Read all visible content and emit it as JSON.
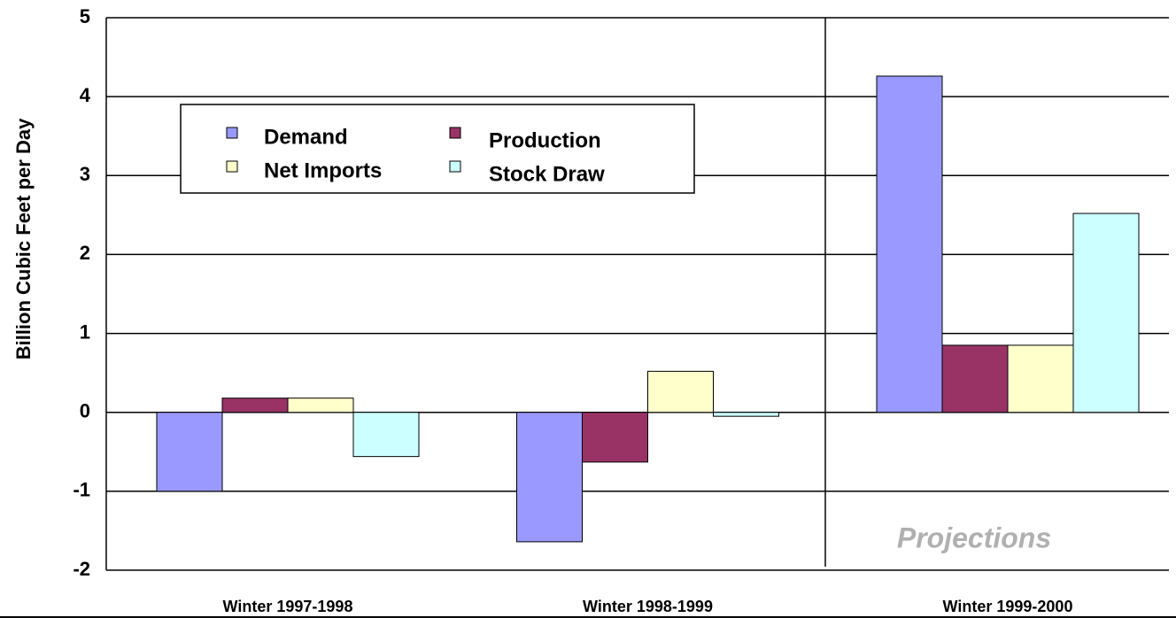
{
  "chart_data": {
    "type": "bar",
    "y_label": "Billion Cubic Feet per Day",
    "annotation": "Projections",
    "categories": [
      "Winter 1997-1998",
      "Winter 1998-1999",
      "Winter 1999-2000"
    ],
    "series": [
      {
        "name": "Demand",
        "color": "#9999ff",
        "values": [
          -1.0,
          -1.64,
          4.26
        ]
      },
      {
        "name": "Production",
        "color": "#993366",
        "values": [
          0.18,
          -0.63,
          0.85
        ]
      },
      {
        "name": "Net Imports",
        "color": "#ffffcc",
        "values": [
          0.18,
          0.52,
          0.85
        ]
      },
      {
        "name": "Stock Draw",
        "color": "#ccffff",
        "values": [
          -0.56,
          -0.05,
          2.52
        ]
      }
    ],
    "ylim": [
      -2,
      5
    ],
    "yticks": [
      -2,
      -1,
      0,
      1,
      2,
      3,
      4,
      5
    ],
    "grid": true
  }
}
